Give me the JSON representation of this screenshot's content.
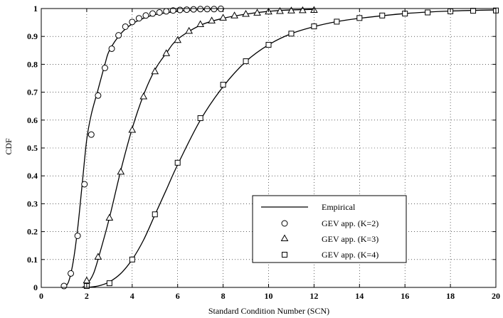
{
  "chart_data": {
    "type": "line",
    "xlabel": "Standard Condition Number (SCN)",
    "ylabel": "CDF",
    "xlim": [
      0,
      20
    ],
    "ylim": [
      0,
      1
    ],
    "xticks": [
      "0",
      "2",
      "4",
      "6",
      "8",
      "10",
      "12",
      "14",
      "16",
      "18",
      "20"
    ],
    "yticks": [
      "0",
      "0.1",
      "0.2",
      "0.3",
      "0.4",
      "0.5",
      "0.6",
      "0.7",
      "0.8",
      "0.9",
      "1"
    ],
    "grid": true,
    "legend_position": "lower-right",
    "legend": {
      "line": "Empirical",
      "k2": "GEV app. (K=2)",
      "k3": "GEV app. (K=3)",
      "k4": "GEV app. (K=4)"
    },
    "curves": [
      {
        "x": [
          1.0,
          1.2,
          1.4,
          1.6,
          1.8,
          2.0,
          2.2,
          2.5,
          2.8,
          3.0,
          3.5,
          4.0,
          4.5,
          5.0,
          6.0,
          7.0,
          8.0
        ],
        "y": [
          0.0,
          0.02,
          0.09,
          0.21,
          0.37,
          0.53,
          0.62,
          0.71,
          0.8,
          0.85,
          0.91,
          0.945,
          0.965,
          0.978,
          0.99,
          0.996,
          0.998
        ]
      },
      {
        "x": [
          1.8,
          2.0,
          2.3,
          2.6,
          3.0,
          3.5,
          4.0,
          4.5,
          5.0,
          5.5,
          6.0,
          7.0,
          8.0,
          9.0,
          10.0,
          11.0,
          12.0
        ],
        "y": [
          0.0,
          0.01,
          0.05,
          0.13,
          0.25,
          0.42,
          0.57,
          0.69,
          0.78,
          0.84,
          0.89,
          0.94,
          0.965,
          0.98,
          0.99,
          0.995,
          0.997
        ]
      },
      {
        "x": [
          2.0,
          2.5,
          3.0,
          3.5,
          4.0,
          4.5,
          5.0,
          5.5,
          6.0,
          7.0,
          8.0,
          9.0,
          10.0,
          11.0,
          12.0,
          13.0,
          14.0,
          16.0,
          18.0,
          20.0
        ],
        "y": [
          0.0,
          0.005,
          0.02,
          0.05,
          0.1,
          0.17,
          0.26,
          0.35,
          0.44,
          0.6,
          0.72,
          0.81,
          0.87,
          0.91,
          0.935,
          0.953,
          0.965,
          0.982,
          0.991,
          0.995
        ]
      }
    ],
    "series": [
      {
        "name": "GEV app. (K=2)",
        "marker": "circle",
        "x": [
          1,
          1.3,
          1.6,
          1.9,
          2.2,
          2.5,
          2.8,
          3.1,
          3.4,
          3.7,
          4,
          4.3,
          4.6,
          4.9,
          5.2,
          5.5,
          5.8,
          6.1,
          6.4,
          6.7,
          7,
          7.3,
          7.6,
          7.9
        ],
        "y": [
          0.005,
          0.05,
          0.185,
          0.37,
          0.548,
          0.688,
          0.787,
          0.856,
          0.904,
          0.935,
          0.952,
          0.965,
          0.975,
          0.982,
          0.986,
          0.99,
          0.993,
          0.995,
          0.996,
          0.997,
          0.998,
          0.998,
          0.998,
          0.999
        ]
      },
      {
        "name": "GEV app. (K=3)",
        "marker": "triangle",
        "x": [
          2,
          2.5,
          3,
          3.5,
          4,
          4.5,
          5,
          5.5,
          6,
          6.5,
          7,
          7.5,
          8,
          8.5,
          9,
          9.5,
          10,
          10.5,
          11,
          11.5,
          12
        ],
        "y": [
          0.025,
          0.11,
          0.25,
          0.415,
          0.565,
          0.685,
          0.775,
          0.84,
          0.887,
          0.92,
          0.944,
          0.957,
          0.967,
          0.975,
          0.981,
          0.985,
          0.989,
          0.991,
          0.993,
          0.994,
          0.995
        ]
      },
      {
        "name": "GEV app. (K=4)",
        "marker": "square",
        "x": [
          2,
          3,
          4,
          5,
          6,
          7,
          8,
          9,
          10,
          11,
          12,
          13,
          14,
          15,
          16,
          17,
          18,
          19,
          20
        ],
        "y": [
          0.005,
          0.015,
          0.1,
          0.262,
          0.447,
          0.607,
          0.727,
          0.811,
          0.87,
          0.91,
          0.936,
          0.953,
          0.966,
          0.975,
          0.982,
          0.986,
          0.99,
          0.992,
          0.993
        ]
      }
    ]
  }
}
